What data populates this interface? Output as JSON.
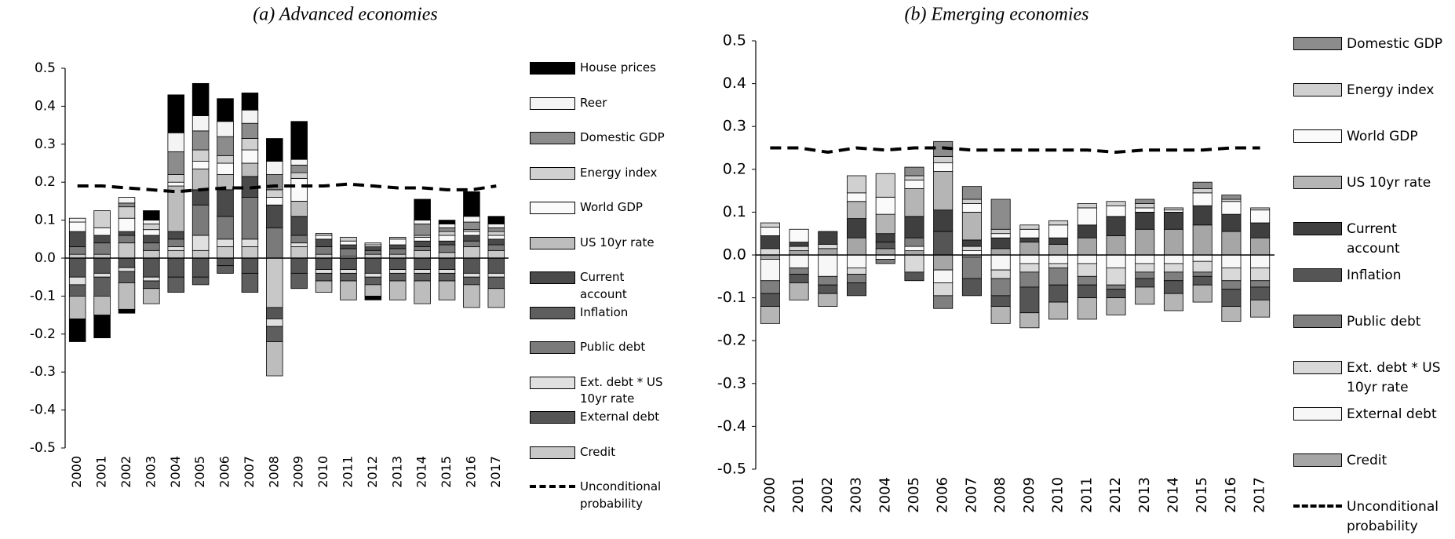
{
  "chart_data": [
    {
      "type": "bar",
      "title": "(a) Advanced economies",
      "categories": [
        "2000",
        "2001",
        "2002",
        "2003",
        "2004",
        "2005",
        "2006",
        "2007",
        "2008",
        "2009",
        "2010",
        "2011",
        "2012",
        "2013",
        "2014",
        "2015",
        "2016",
        "2017"
      ],
      "ylim": [
        -0.5,
        0.5
      ],
      "yticks": [
        -0.5,
        -0.4,
        -0.3,
        -0.2,
        -0.1,
        {
          "value": 0,
          "label": "0.0"
        },
        0.1,
        0.2,
        0.3,
        0.4,
        0.5
      ],
      "series": [
        {
          "name": "House prices",
          "color": "#000000",
          "values": [
            -0.06,
            -0.06,
            -0.01,
            0.025,
            0.1,
            0.085,
            0.06,
            0.045,
            0.06,
            0.1,
            0,
            0,
            -0.01,
            0,
            0.055,
            0.01,
            0.065,
            0.02
          ]
        },
        {
          "name": "Reer",
          "color": "#f4f4f4",
          "values": [
            0.01,
            0,
            0.015,
            0.01,
            0.05,
            0.04,
            0.04,
            0.035,
            0.035,
            0.015,
            0,
            0,
            0,
            0,
            0.01,
            0.01,
            0.015,
            0.01
          ]
        },
        {
          "name": "Domestic GDP",
          "color": "#8c8c8c",
          "values": [
            0,
            0,
            0.01,
            0,
            0.06,
            0.05,
            0.05,
            0.04,
            0.04,
            0.02,
            0,
            0,
            0,
            0,
            0.03,
            0.01,
            0.02,
            0.01
          ]
        },
        {
          "name": "Energy index",
          "color": "#d0d0d0",
          "values": [
            0,
            0.045,
            0.03,
            0.015,
            0.02,
            0.03,
            0.02,
            0.03,
            0.02,
            0.015,
            0.005,
            0.01,
            0.005,
            0.005,
            0.005,
            0.01,
            0.005,
            0.01
          ]
        },
        {
          "name": "World GDP",
          "color": "#fafafa",
          "values": [
            0.025,
            0.02,
            0.035,
            0.015,
            0.01,
            0.02,
            0.03,
            0.035,
            0.02,
            0.06,
            0.01,
            0.01,
            0.005,
            0.015,
            0.01,
            0.015,
            0.01,
            0.01
          ]
        },
        {
          "name": "US 10yr rate",
          "color": "#bdbdbd",
          "values": [
            -0.06,
            -0.05,
            -0.07,
            -0.04,
            0.12,
            0.055,
            0.04,
            0.035,
            -0.09,
            0.04,
            -0.03,
            -0.05,
            -0.03,
            -0.05,
            -0.06,
            -0.05,
            -0.06,
            -0.05
          ]
        },
        {
          "name": "Current account",
          "color": "#4a4a4a",
          "values": [
            0.04,
            0.02,
            0.01,
            0.02,
            0.02,
            0.04,
            0.07,
            0.055,
            0.06,
            0.05,
            0.02,
            0.01,
            0.01,
            0.01,
            0.015,
            0.01,
            0.015,
            0.015
          ]
        },
        {
          "name": "Inflation",
          "color": "#5e5e5e",
          "values": [
            -0.03,
            -0.05,
            -0.03,
            -0.02,
            -0.04,
            -0.02,
            -0.02,
            -0.05,
            -0.04,
            -0.04,
            -0.02,
            -0.02,
            -0.02,
            -0.02,
            -0.02,
            -0.02,
            -0.02,
            -0.03
          ]
        },
        {
          "name": "Public debt",
          "color": "#7a7a7a",
          "values": [
            0.02,
            0.03,
            0.02,
            0.02,
            0.02,
            0.08,
            0.06,
            0.11,
            0.08,
            0.02,
            0.02,
            0.02,
            0.01,
            0.015,
            0.01,
            0.02,
            0.015,
            0.015
          ]
        },
        {
          "name": "Ext. debt * US 10yr rate",
          "color": "#e0e0e0",
          "values": [
            -0.02,
            -0.01,
            -0.01,
            -0.01,
            0.01,
            0.04,
            0.02,
            0.02,
            -0.02,
            0.01,
            -0.01,
            -0.01,
            -0.01,
            -0.01,
            -0.01,
            -0.01,
            -0.01,
            -0.01
          ]
        },
        {
          "name": "External debt",
          "color": "#555555",
          "values": [
            -0.05,
            -0.04,
            -0.025,
            -0.05,
            -0.05,
            -0.05,
            -0.02,
            -0.04,
            -0.03,
            -0.04,
            -0.03,
            -0.03,
            -0.04,
            -0.03,
            -0.03,
            -0.03,
            -0.04,
            -0.04
          ]
        },
        {
          "name": "Credit",
          "color": "#c8c8c8",
          "values": [
            0.01,
            0.01,
            0.04,
            0.02,
            0.02,
            0.02,
            0.03,
            0.03,
            -0.13,
            0.03,
            0.01,
            0.005,
            0.01,
            0.01,
            0.02,
            0.015,
            0.03,
            0.02
          ]
        },
        {
          "name": "Unconditional probability",
          "type": "line",
          "line_style": "dashed",
          "color": "#000000",
          "values": [
            0.19,
            0.19,
            0.185,
            0.18,
            0.175,
            0.18,
            0.185,
            0.185,
            0.19,
            0.19,
            0.19,
            0.195,
            0.19,
            0.185,
            0.185,
            0.18,
            0.18,
            0.19
          ]
        }
      ]
    },
    {
      "type": "bar",
      "title": "(b) Emerging economies",
      "categories": [
        "2000",
        "2001",
        "2002",
        "2003",
        "2004",
        "2005",
        "2006",
        "2007",
        "2008",
        "2009",
        "2010",
        "2011",
        "2012",
        "2013",
        "2014",
        "2015",
        "2016",
        "2017"
      ],
      "ylim": [
        -0.5,
        0.5
      ],
      "yticks": [
        -0.5,
        -0.4,
        -0.3,
        -0.2,
        -0.1,
        {
          "value": 0,
          "label": "0.0"
        },
        0.1,
        0.2,
        0.3,
        0.4,
        0.5
      ],
      "series": [
        {
          "name": "Domestic GDP",
          "color": "#8c8c8c",
          "values": [
            0,
            0,
            0,
            0,
            0,
            0.02,
            0.035,
            0.03,
            0.07,
            0,
            0,
            0,
            0,
            0.01,
            0,
            0.015,
            0.01,
            0
          ]
        },
        {
          "name": "Energy index",
          "color": "#d0d0d0",
          "values": [
            0.01,
            0,
            0,
            0.04,
            0.055,
            0.01,
            0.015,
            0.01,
            0.01,
            0.01,
            0.01,
            0.01,
            0.01,
            0.01,
            0.005,
            0.01,
            0.005,
            0.005
          ]
        },
        {
          "name": "World GDP",
          "color": "#fafafa",
          "values": [
            0.02,
            0.03,
            0,
            0.02,
            0.04,
            0.02,
            0.02,
            0.02,
            0.01,
            0.02,
            0.03,
            0.04,
            0.025,
            0.01,
            0.005,
            0.03,
            0.03,
            0.03
          ]
        },
        {
          "name": "US 10yr rate",
          "color": "#b5b5b5",
          "values": [
            -0.04,
            -0.04,
            -0.03,
            0.04,
            0.045,
            0.065,
            0.09,
            0.065,
            -0.04,
            -0.035,
            -0.04,
            -0.05,
            -0.04,
            -0.04,
            -0.04,
            -0.04,
            -0.035,
            -0.04
          ]
        },
        {
          "name": "Current account",
          "color": "#3f3f3f",
          "values": [
            0.03,
            0.01,
            0.03,
            0.045,
            0.02,
            0.05,
            0.05,
            0.015,
            0.025,
            0.01,
            0.015,
            0.03,
            0.045,
            0.04,
            0.04,
            0.045,
            0.04,
            0.035
          ]
        },
        {
          "name": "Inflation",
          "color": "#555555",
          "values": [
            -0.03,
            -0.02,
            -0.02,
            -0.03,
            0.015,
            -0.02,
            0.055,
            -0.04,
            -0.025,
            -0.06,
            -0.04,
            -0.03,
            -0.02,
            -0.02,
            -0.03,
            -0.02,
            -0.04,
            -0.03
          ]
        },
        {
          "name": "Public debt",
          "color": "#7f7f7f",
          "values": [
            -0.03,
            -0.015,
            -0.02,
            -0.02,
            -0.01,
            0.02,
            -0.03,
            -0.05,
            -0.04,
            -0.035,
            -0.04,
            -0.02,
            -0.01,
            -0.015,
            -0.02,
            -0.01,
            -0.02,
            -0.015
          ]
        },
        {
          "name": "Ext. debt * US 10yr rate",
          "color": "#d9d9d9",
          "values": [
            0.015,
            0.01,
            0.01,
            -0.015,
            0,
            -0.04,
            -0.03,
            0.01,
            -0.02,
            -0.02,
            -0.01,
            -0.03,
            -0.04,
            -0.02,
            -0.02,
            -0.025,
            -0.03,
            -0.03
          ]
        },
        {
          "name": "External debt",
          "color": "#f7f7f7",
          "values": [
            -0.05,
            -0.03,
            -0.05,
            -0.03,
            -0.01,
            0.01,
            -0.03,
            0.01,
            -0.035,
            -0.02,
            -0.02,
            -0.02,
            -0.03,
            -0.02,
            -0.02,
            -0.015,
            -0.03,
            -0.03
          ]
        },
        {
          "name": "Credit",
          "color": "#a6a6a6",
          "values": [
            -0.01,
            0.01,
            0.015,
            0.04,
            0.015,
            0.01,
            -0.035,
            -0.005,
            0.015,
            0.03,
            0.025,
            0.04,
            0.045,
            0.06,
            0.06,
            0.07,
            0.055,
            0.04
          ]
        },
        {
          "name": "Unconditional probability",
          "type": "line",
          "line_style": "dashed",
          "color": "#000000",
          "values": [
            0.25,
            0.25,
            0.24,
            0.25,
            0.245,
            0.25,
            0.25,
            0.245,
            0.245,
            0.245,
            0.245,
            0.245,
            0.24,
            0.245,
            0.245,
            0.245,
            0.25,
            0.25
          ]
        }
      ]
    }
  ]
}
